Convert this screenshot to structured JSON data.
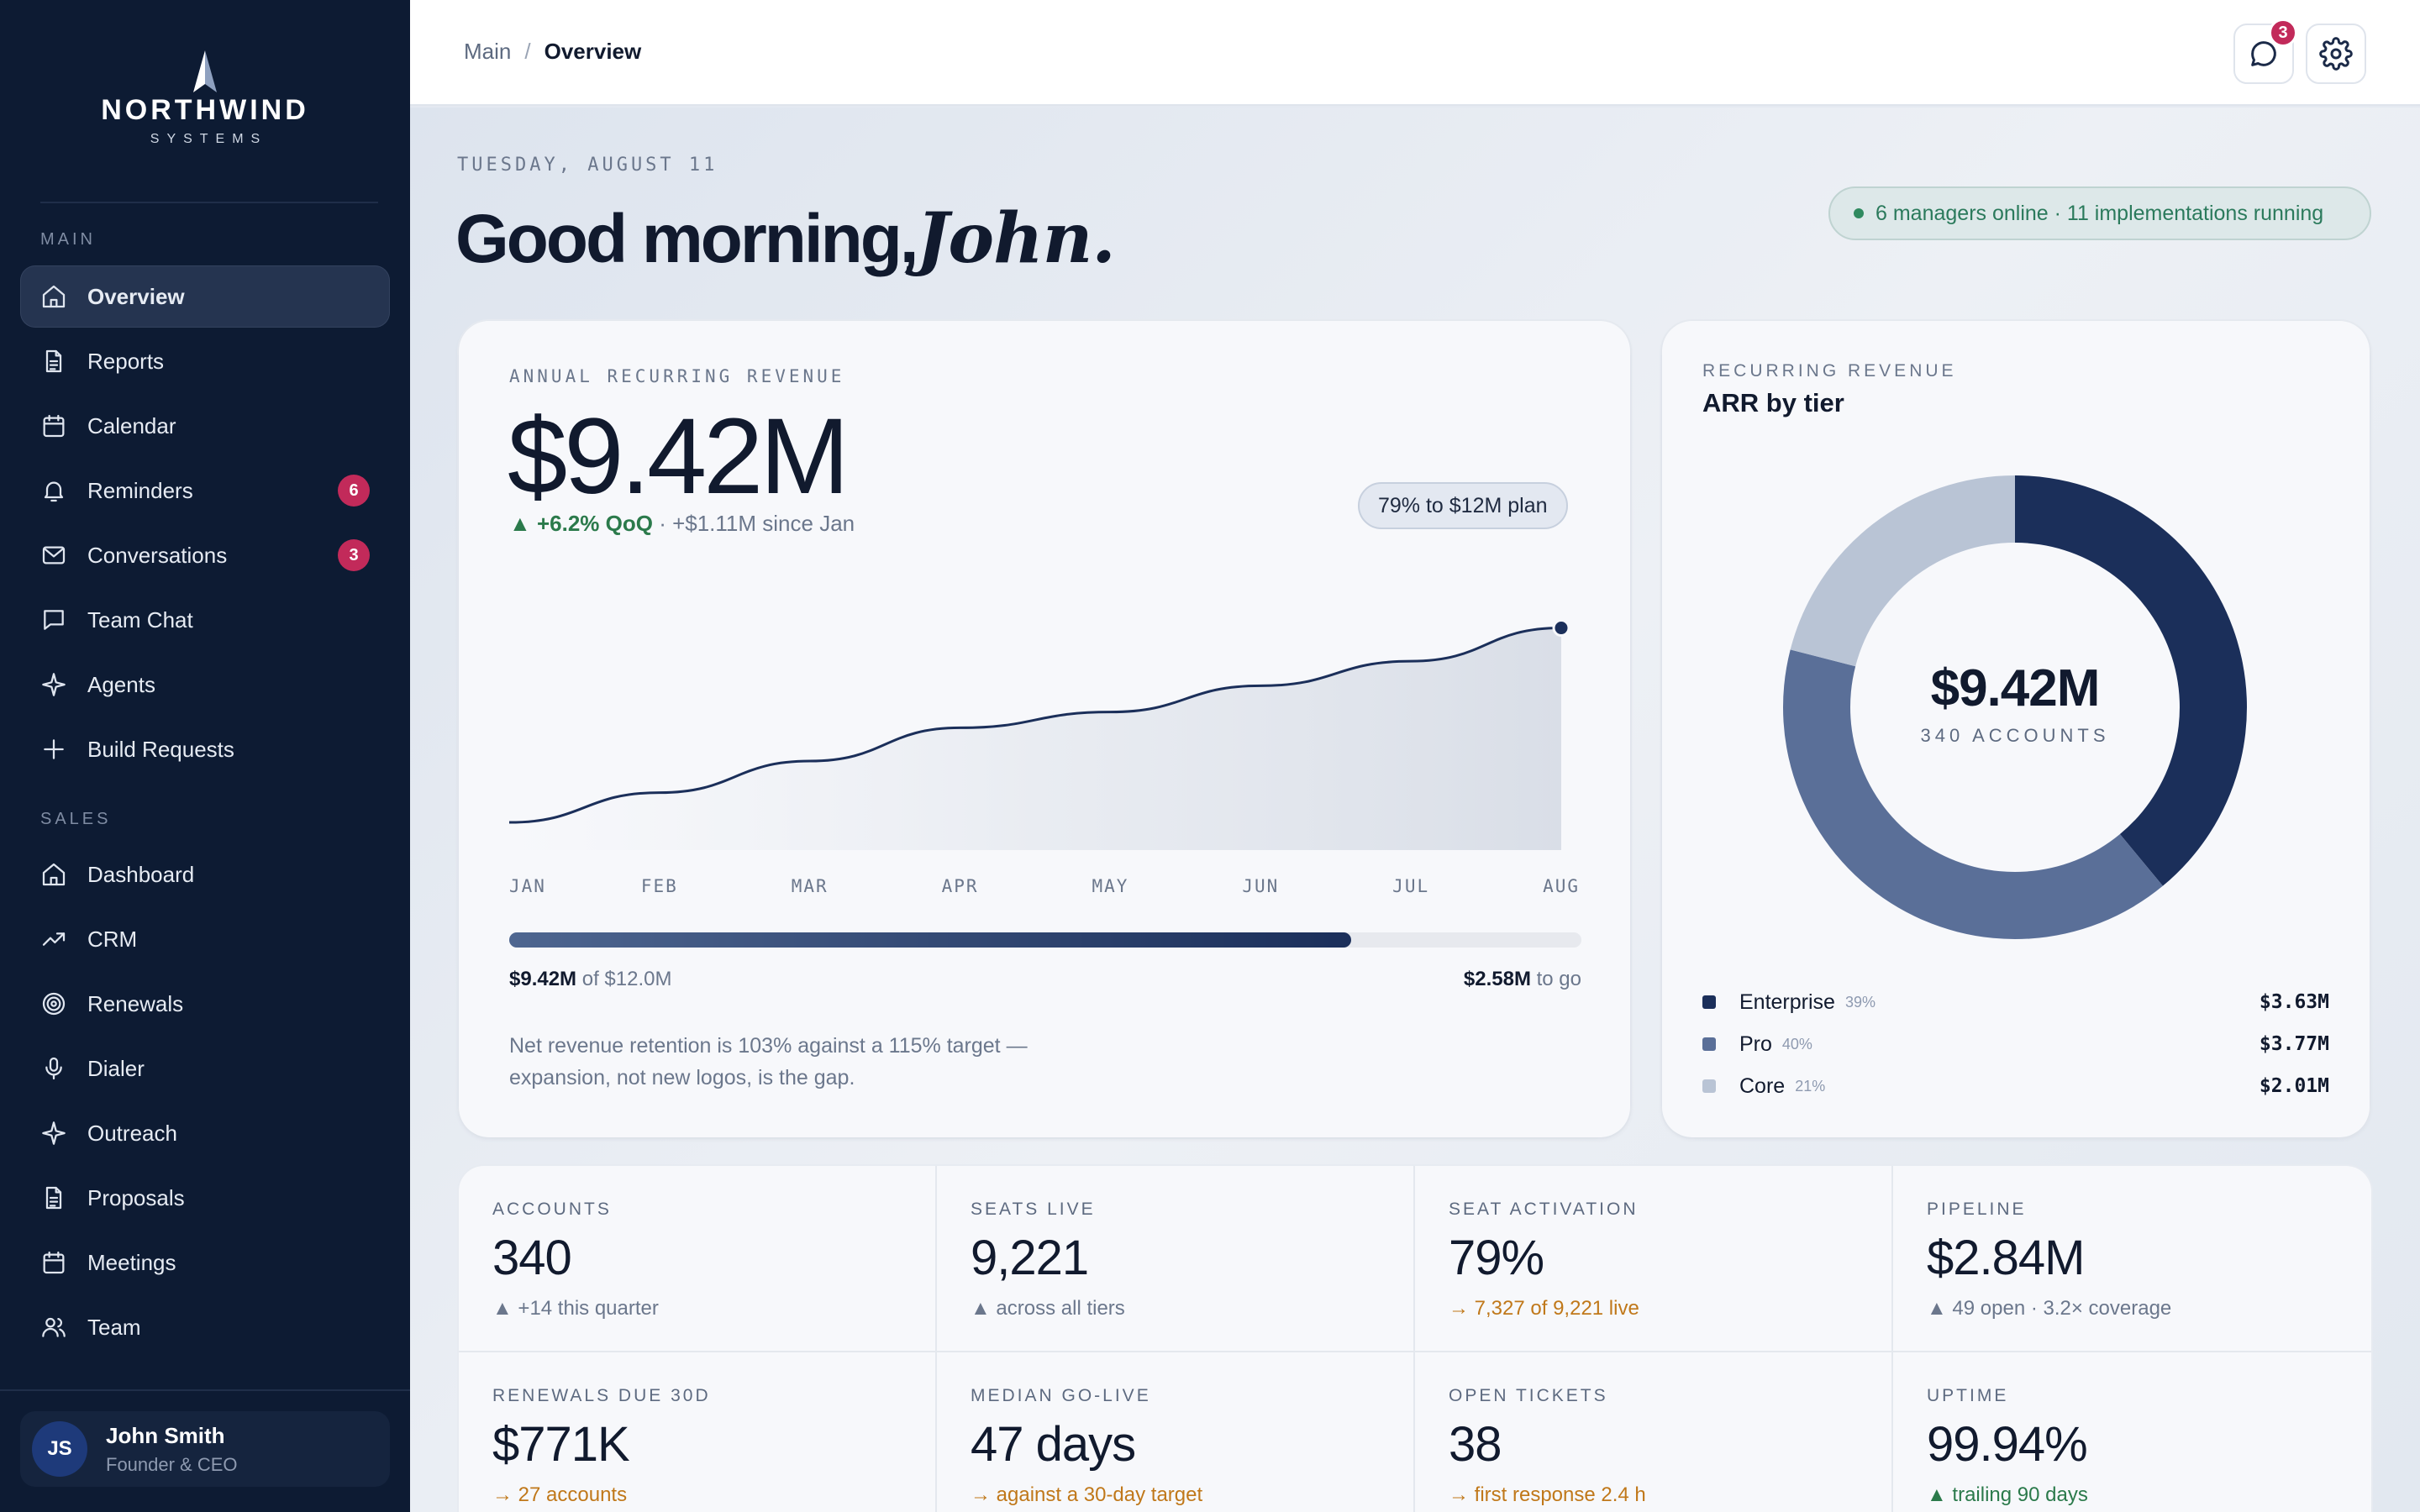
{
  "brand": {
    "name": "NORTHWIND",
    "tagline": "SYSTEMS"
  },
  "sidebar": {
    "sections": [
      {
        "label": "MAIN",
        "items": [
          {
            "label": "Overview",
            "icon": "home-icon",
            "active": true
          },
          {
            "label": "Reports",
            "icon": "document-icon"
          },
          {
            "label": "Calendar",
            "icon": "calendar-icon"
          },
          {
            "label": "Reminders",
            "icon": "bell-icon",
            "badge": "6"
          },
          {
            "label": "Conversations",
            "icon": "mail-icon",
            "badge": "3"
          },
          {
            "label": "Team Chat",
            "icon": "chat-icon"
          },
          {
            "label": "Agents",
            "icon": "sparkle-icon"
          },
          {
            "label": "Build Requests",
            "icon": "plus-icon"
          }
        ]
      },
      {
        "label": "SALES",
        "items": [
          {
            "label": "Dashboard",
            "icon": "home-icon"
          },
          {
            "label": "CRM",
            "icon": "trend-icon"
          },
          {
            "label": "Renewals",
            "icon": "target-icon"
          },
          {
            "label": "Dialer",
            "icon": "microphone-icon"
          },
          {
            "label": "Outreach",
            "icon": "sparkle-icon"
          },
          {
            "label": "Proposals",
            "icon": "document-icon"
          },
          {
            "label": "Meetings",
            "icon": "calendar-icon"
          },
          {
            "label": "Team",
            "icon": "users-icon"
          }
        ]
      }
    ],
    "user": {
      "initials": "JS",
      "name": "John Smith",
      "role": "Founder & CEO"
    }
  },
  "topbar": {
    "breadcrumb": {
      "root": "Main",
      "separator": "/",
      "current": "Overview"
    },
    "messages_badge": "3",
    "icons": [
      "message-icon",
      "gear-icon"
    ]
  },
  "header": {
    "date": "TUESDAY, AUGUST 11",
    "greeting": "Good morning,",
    "name": "John.",
    "status": "6 managers online · 11 implementations running"
  },
  "arr": {
    "eyebrow": "ANNUAL RECURRING REVENUE",
    "value": "$9.42M",
    "delta": "▲ +6.2% QoQ",
    "delta_rest": " · +$1.11M since Jan",
    "plan_pill": "79% to $12M plan",
    "progress": {
      "fraction": 0.785,
      "left_value": "$9.42M",
      "left_rest": " of $12.0M",
      "right_value": "$2.58M",
      "right_rest": " to go"
    },
    "note": "Net revenue retention is 103% against a 115% target — expansion, not new logos, is the gap."
  },
  "chart_data": {
    "type": "line",
    "categories": [
      "JAN",
      "FEB",
      "MAR",
      "APR",
      "MAY",
      "JUN",
      "JUL",
      "AUG"
    ],
    "series": [
      {
        "values": [
          8.31,
          8.48,
          8.66,
          8.85,
          8.94,
          9.09,
          9.23,
          9.42
        ]
      }
    ],
    "ylim": [
      8.2,
      9.6
    ],
    "grid": false,
    "color": "#1b2f5a"
  },
  "tiers": {
    "eyebrow": "RECURRING REVENUE",
    "title": "ARR by tier",
    "center_value": "$9.42M",
    "center_sub": "340 ACCOUNTS",
    "items": [
      {
        "name": "Enterprise",
        "pct": "39%",
        "share": 39,
        "value": "$3.63M",
        "color": "#1b2f5a"
      },
      {
        "name": "Pro",
        "pct": "40%",
        "share": 40,
        "value": "$3.77M",
        "color": "#5a6f98"
      },
      {
        "name": "Core",
        "pct": "21%",
        "share": 21,
        "value": "$2.01M",
        "color": "#b9c4d5"
      }
    ]
  },
  "kpis": [
    {
      "label": "ACCOUNTS",
      "value": "340",
      "sub": "▲ +14 this quarter",
      "tone": "neutral"
    },
    {
      "label": "SEATS LIVE",
      "value": "9,221",
      "sub": "▲ across all tiers",
      "tone": "neutral"
    },
    {
      "label": "SEAT ACTIVATION",
      "value": "79%",
      "sub": "→ 7,327 of 9,221 live",
      "tone": "warn"
    },
    {
      "label": "PIPELINE",
      "value": "$2.84M",
      "sub": "▲ 49 open · 3.2× coverage",
      "tone": "neutral"
    },
    {
      "label": "RENEWALS DUE 30D",
      "value": "$771K",
      "sub": "→ 27 accounts",
      "tone": "warn"
    },
    {
      "label": "MEDIAN GO-LIVE",
      "value": "47 days",
      "sub": "→ against a 30-day target",
      "tone": "warn"
    },
    {
      "label": "OPEN TICKETS",
      "value": "38",
      "sub": "→ first response 2.4 h",
      "tone": "warn"
    },
    {
      "label": "UPTIME",
      "value": "99.94%",
      "sub": "▲ trailing 90 days",
      "tone": "good"
    }
  ]
}
